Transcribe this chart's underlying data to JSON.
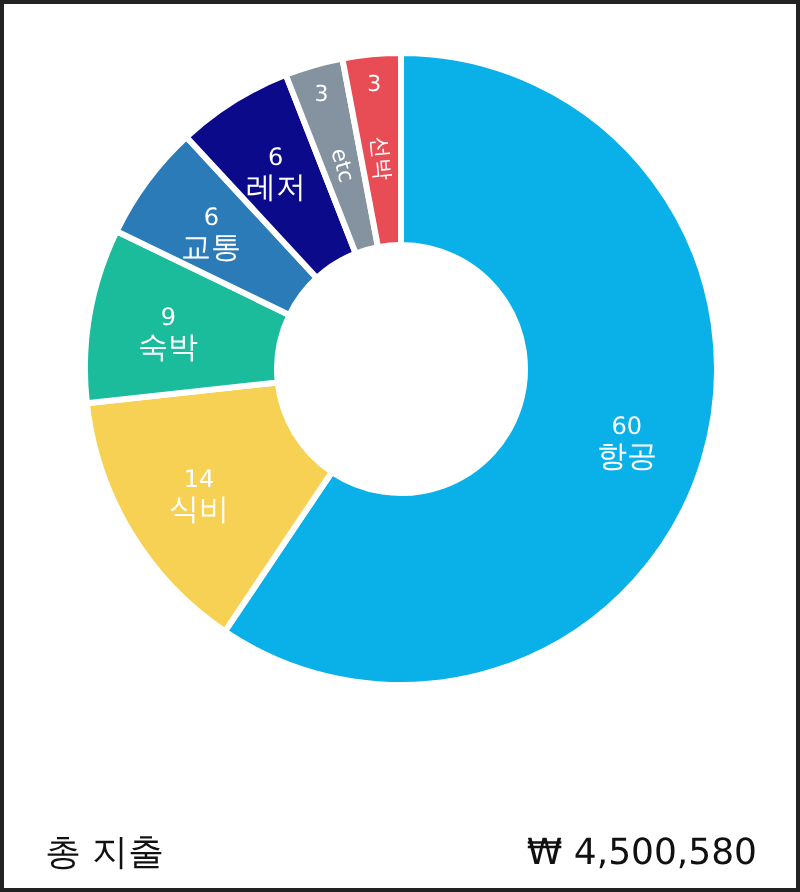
{
  "chart_data": {
    "type": "donut",
    "categories": [
      "항공",
      "식비",
      "숙박",
      "교통",
      "레저",
      "etc",
      "선박"
    ],
    "values": [
      60,
      14,
      9,
      6,
      6,
      3,
      3
    ],
    "colors": [
      "#0ab0e8",
      "#f7d154",
      "#1abc9c",
      "#2b7bb9",
      "#0b0a8a",
      "#8593a0",
      "#e84c54"
    ],
    "data_labels": true,
    "annotations": [
      "총 지출",
      "₩ 4,500,580"
    ]
  }
}
